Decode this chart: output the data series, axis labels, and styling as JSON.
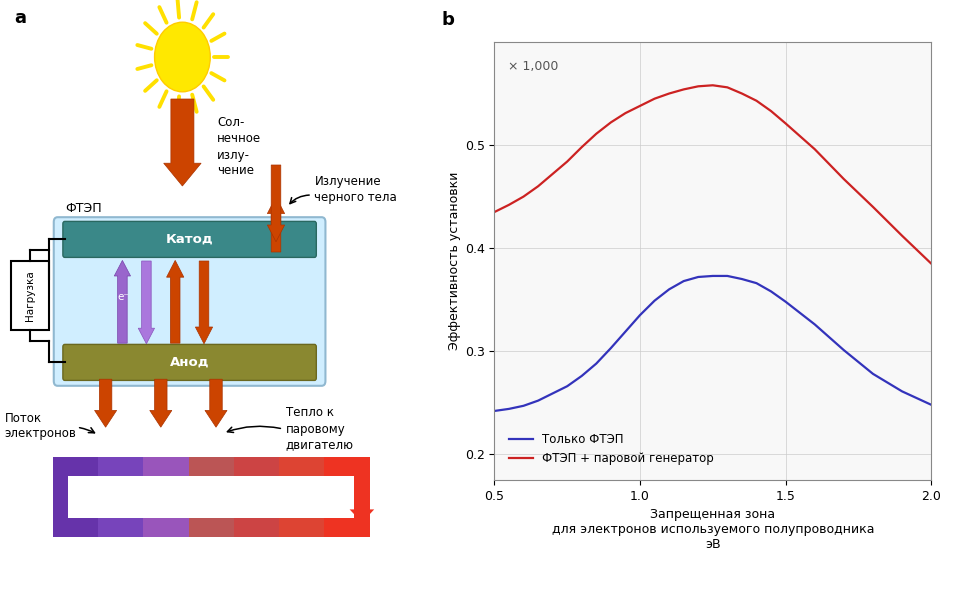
{
  "panel_b_label": "b",
  "panel_a_label": "a",
  "xlabel": "Запрещенная зона\nдля электронов используемого полупроводника\nэВ",
  "ylabel": "Эффективность установки",
  "yticks": [
    0.2,
    0.3,
    0.4,
    0.5
  ],
  "xticks": [
    0.5,
    1.0,
    1.5,
    2.0
  ],
  "xlim": [
    0.5,
    2.0
  ],
  "ylim": [
    0.175,
    0.6
  ],
  "annotation": "× 1,000",
  "legend_blue": "Только ФТЭП",
  "legend_red": "ФТЭП + паровой генератор",
  "blue_color": "#3333bb",
  "red_color": "#cc2222",
  "bg_color": "#f8f8f8",
  "blue_x": [
    0.5,
    0.55,
    0.6,
    0.65,
    0.7,
    0.75,
    0.8,
    0.85,
    0.9,
    0.95,
    1.0,
    1.05,
    1.1,
    1.15,
    1.2,
    1.25,
    1.3,
    1.35,
    1.4,
    1.45,
    1.5,
    1.6,
    1.7,
    1.8,
    1.9,
    2.0
  ],
  "blue_y": [
    0.242,
    0.244,
    0.247,
    0.252,
    0.259,
    0.266,
    0.276,
    0.288,
    0.303,
    0.319,
    0.335,
    0.349,
    0.36,
    0.368,
    0.372,
    0.373,
    0.373,
    0.37,
    0.366,
    0.358,
    0.348,
    0.326,
    0.301,
    0.278,
    0.261,
    0.248
  ],
  "red_x": [
    0.5,
    0.55,
    0.6,
    0.65,
    0.7,
    0.75,
    0.8,
    0.85,
    0.9,
    0.95,
    1.0,
    1.05,
    1.1,
    1.15,
    1.2,
    1.25,
    1.3,
    1.35,
    1.4,
    1.45,
    1.5,
    1.6,
    1.7,
    1.8,
    1.9,
    2.0
  ],
  "red_y": [
    0.435,
    0.442,
    0.45,
    0.46,
    0.472,
    0.484,
    0.498,
    0.511,
    0.522,
    0.531,
    0.538,
    0.545,
    0.55,
    0.554,
    0.557,
    0.558,
    0.556,
    0.55,
    0.543,
    0.533,
    0.521,
    0.496,
    0.467,
    0.44,
    0.412,
    0.385
  ],
  "label_cathode": "Катод",
  "label_anode": "Анод",
  "label_ftep": "ФТЭП",
  "label_load": "Нагрузка",
  "label_solar": "Сол-\nнечное\nизлу-\nчение",
  "label_blackbody": "Излучение\nчерного тела",
  "label_electrons": "Поток\nэлектронов",
  "label_heat": "Тепло к\nпаровому\nдвигателю",
  "orange_color": "#CC4400",
  "cathode_color": "#3A8888",
  "anode_color": "#8A8830",
  "ftep_bg": "#D0EEFF",
  "ftep_edge": "#90B8D0"
}
